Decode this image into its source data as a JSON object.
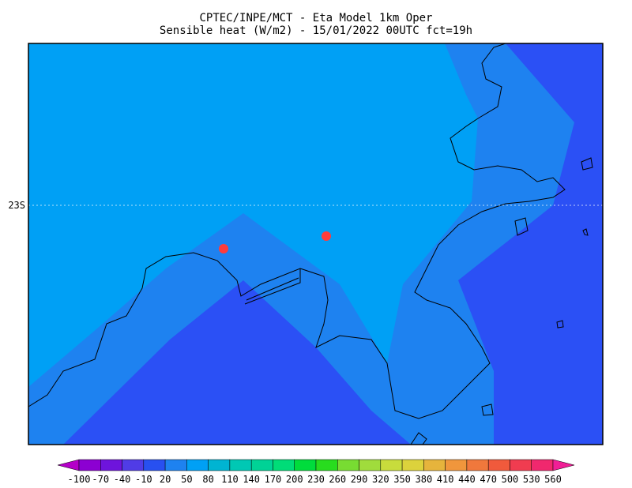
{
  "header": {
    "title": "CPTEC/INPE/MCT -  Eta Model 1km Oper",
    "subtitle": "Sensible heat (W/m2) - 15/01/2022 00UTC fct=19h"
  },
  "map": {
    "lat_label": "23S"
  },
  "colorbar": {
    "ticks": [
      -100,
      -70,
      -40,
      -10,
      20,
      50,
      80,
      110,
      140,
      170,
      200,
      230,
      260,
      290,
      320,
      350,
      380,
      410,
      440,
      470,
      500,
      530,
      560
    ],
    "colors": [
      "#b400c8",
      "#8c00d2",
      "#6e14dc",
      "#503ce6",
      "#2850f0",
      "#1e82f0",
      "#00a0f5",
      "#00b4d2",
      "#00c8b4",
      "#00d296",
      "#00dc78",
      "#00dc3c",
      "#28dc1e",
      "#78dc32",
      "#a0dc3c",
      "#c8dc3c",
      "#dcd23c",
      "#e6b43c",
      "#f0963c",
      "#f0783c",
      "#f05a3c",
      "#f03c50",
      "#f0286e",
      "#f01e96"
    ]
  }
}
